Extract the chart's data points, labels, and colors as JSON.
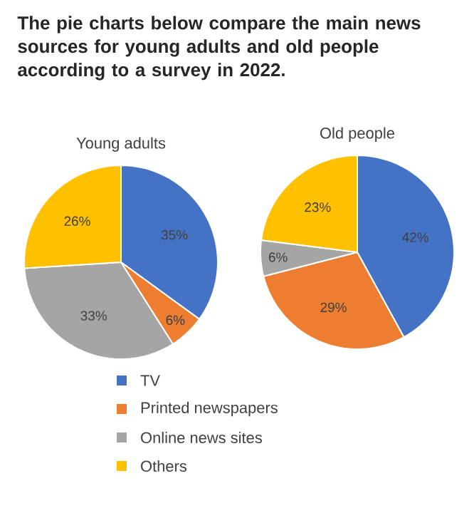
{
  "chart_data": {
    "type": "pie",
    "title": "The pie charts below compare the main news sources for young adults and old people according to a survey in 2022.",
    "categories": [
      "TV",
      "Printed newspapers",
      "Online news sites",
      "Others"
    ],
    "colors": [
      "#4472c4",
      "#ed7d31",
      "#a5a5a5",
      "#ffc000"
    ],
    "legend": "bottom",
    "series": [
      {
        "name": "Young adults",
        "values": [
          35,
          6,
          33,
          26
        ],
        "value_labels": [
          "35%",
          "6%",
          "33%",
          "26%"
        ]
      },
      {
        "name": "Old people",
        "values": [
          42,
          29,
          6,
          23
        ],
        "value_labels": [
          "42%",
          "29%",
          "6%",
          "23%"
        ]
      }
    ]
  }
}
